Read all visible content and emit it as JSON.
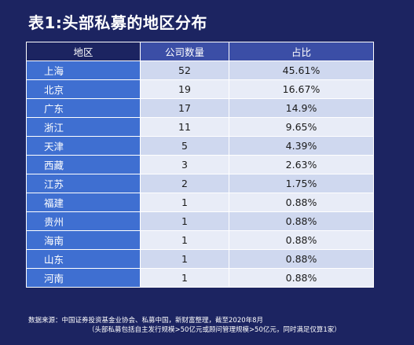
{
  "title": "表1:头部私募的地区分布",
  "table": {
    "headers": [
      "地区",
      "公司数量",
      "占比"
    ],
    "rows": [
      {
        "region": "上海",
        "count": "52",
        "share": "45.61%"
      },
      {
        "region": "北京",
        "count": "19",
        "share": "16.67%"
      },
      {
        "region": "广东",
        "count": "17",
        "share": "14.9%"
      },
      {
        "region": "浙江",
        "count": "11",
        "share": "9.65%"
      },
      {
        "region": "天津",
        "count": "5",
        "share": "4.39%"
      },
      {
        "region": "西藏",
        "count": "3",
        "share": "2.63%"
      },
      {
        "region": "江苏",
        "count": "2",
        "share": "1.75%"
      },
      {
        "region": "福建",
        "count": "1",
        "share": "0.88%"
      },
      {
        "region": "贵州",
        "count": "1",
        "share": "0.88%"
      },
      {
        "region": "海南",
        "count": "1",
        "share": "0.88%"
      },
      {
        "region": "山东",
        "count": "1",
        "share": "0.88%"
      },
      {
        "region": "河南",
        "count": "1",
        "share": "0.88%"
      }
    ]
  },
  "footer": {
    "line1": "数据来源：中国证券投资基金业协会、私募中国，新财富整理，截至2020年8月",
    "line2": "（头部私募包括自主发行规模>50亿元或顾问管理规模>50亿元，同时满足仅算1家）"
  },
  "colors": {
    "background": "#1c2461",
    "header_dark": "#1c2461",
    "header_mid": "#3b4ea6",
    "region_cell": "#3f6fd1",
    "row_odd": "#cfd8ef",
    "row_even": "#e8ecf7"
  }
}
